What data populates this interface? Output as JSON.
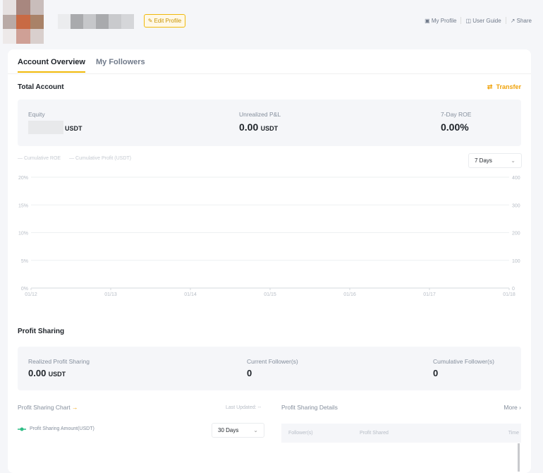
{
  "header": {
    "edit_profile": "Edit Profile",
    "links": [
      {
        "label": "My Profile",
        "icon": "profile-icon"
      },
      {
        "label": "User Guide",
        "icon": "book-icon"
      },
      {
        "label": "Share",
        "icon": "share-icon"
      }
    ]
  },
  "tabs": [
    {
      "label": "Account Overview",
      "active": true
    },
    {
      "label": "My Followers",
      "active": false
    }
  ],
  "total_account": {
    "title": "Total Account",
    "transfer": "Transfer",
    "equity": {
      "label": "Equity",
      "unit": "USDT"
    },
    "pnl": {
      "label": "Unrealized P&L",
      "value": "0.00",
      "unit": "USDT"
    },
    "roe": {
      "label": "7-Day ROE",
      "value": "0.00%"
    }
  },
  "chart_data": {
    "type": "line",
    "legend": [
      "Cumulative ROE",
      "Cumulative Profit (USDT)"
    ],
    "legend_placement": "top-left",
    "categories": [
      "01/12",
      "01/13",
      "01/14",
      "01/15",
      "01/16",
      "01/17",
      "01/18"
    ],
    "y_left_ticks": [
      "0%",
      "5%",
      "10%",
      "15%",
      "20%"
    ],
    "y_right_ticks": [
      "0",
      "100",
      "200",
      "300",
      "400"
    ],
    "ylim_left": [
      0,
      20
    ],
    "ylim_right": [
      0,
      400
    ],
    "grid": true,
    "series": []
  },
  "range_select": "7 Days",
  "profit_sharing": {
    "title": "Profit Sharing",
    "realized": {
      "label": "Realized Profit Sharing",
      "value": "0.00",
      "unit": "USDT"
    },
    "current": {
      "label": "Current Follower(s)",
      "value": "0"
    },
    "cumulative": {
      "label": "Cumulative Follower(s)",
      "value": "0"
    },
    "chart_title": "Profit Sharing Chart",
    "last_updated": "Last Updated: --",
    "legend": "Profit Sharing Amount(USDT)",
    "legend_color": "#2ebd85",
    "range": "30 Days",
    "details_title": "Profit Sharing Details",
    "more": "More",
    "columns": [
      "Follower(s)",
      "Profit Shared",
      "Time"
    ]
  }
}
